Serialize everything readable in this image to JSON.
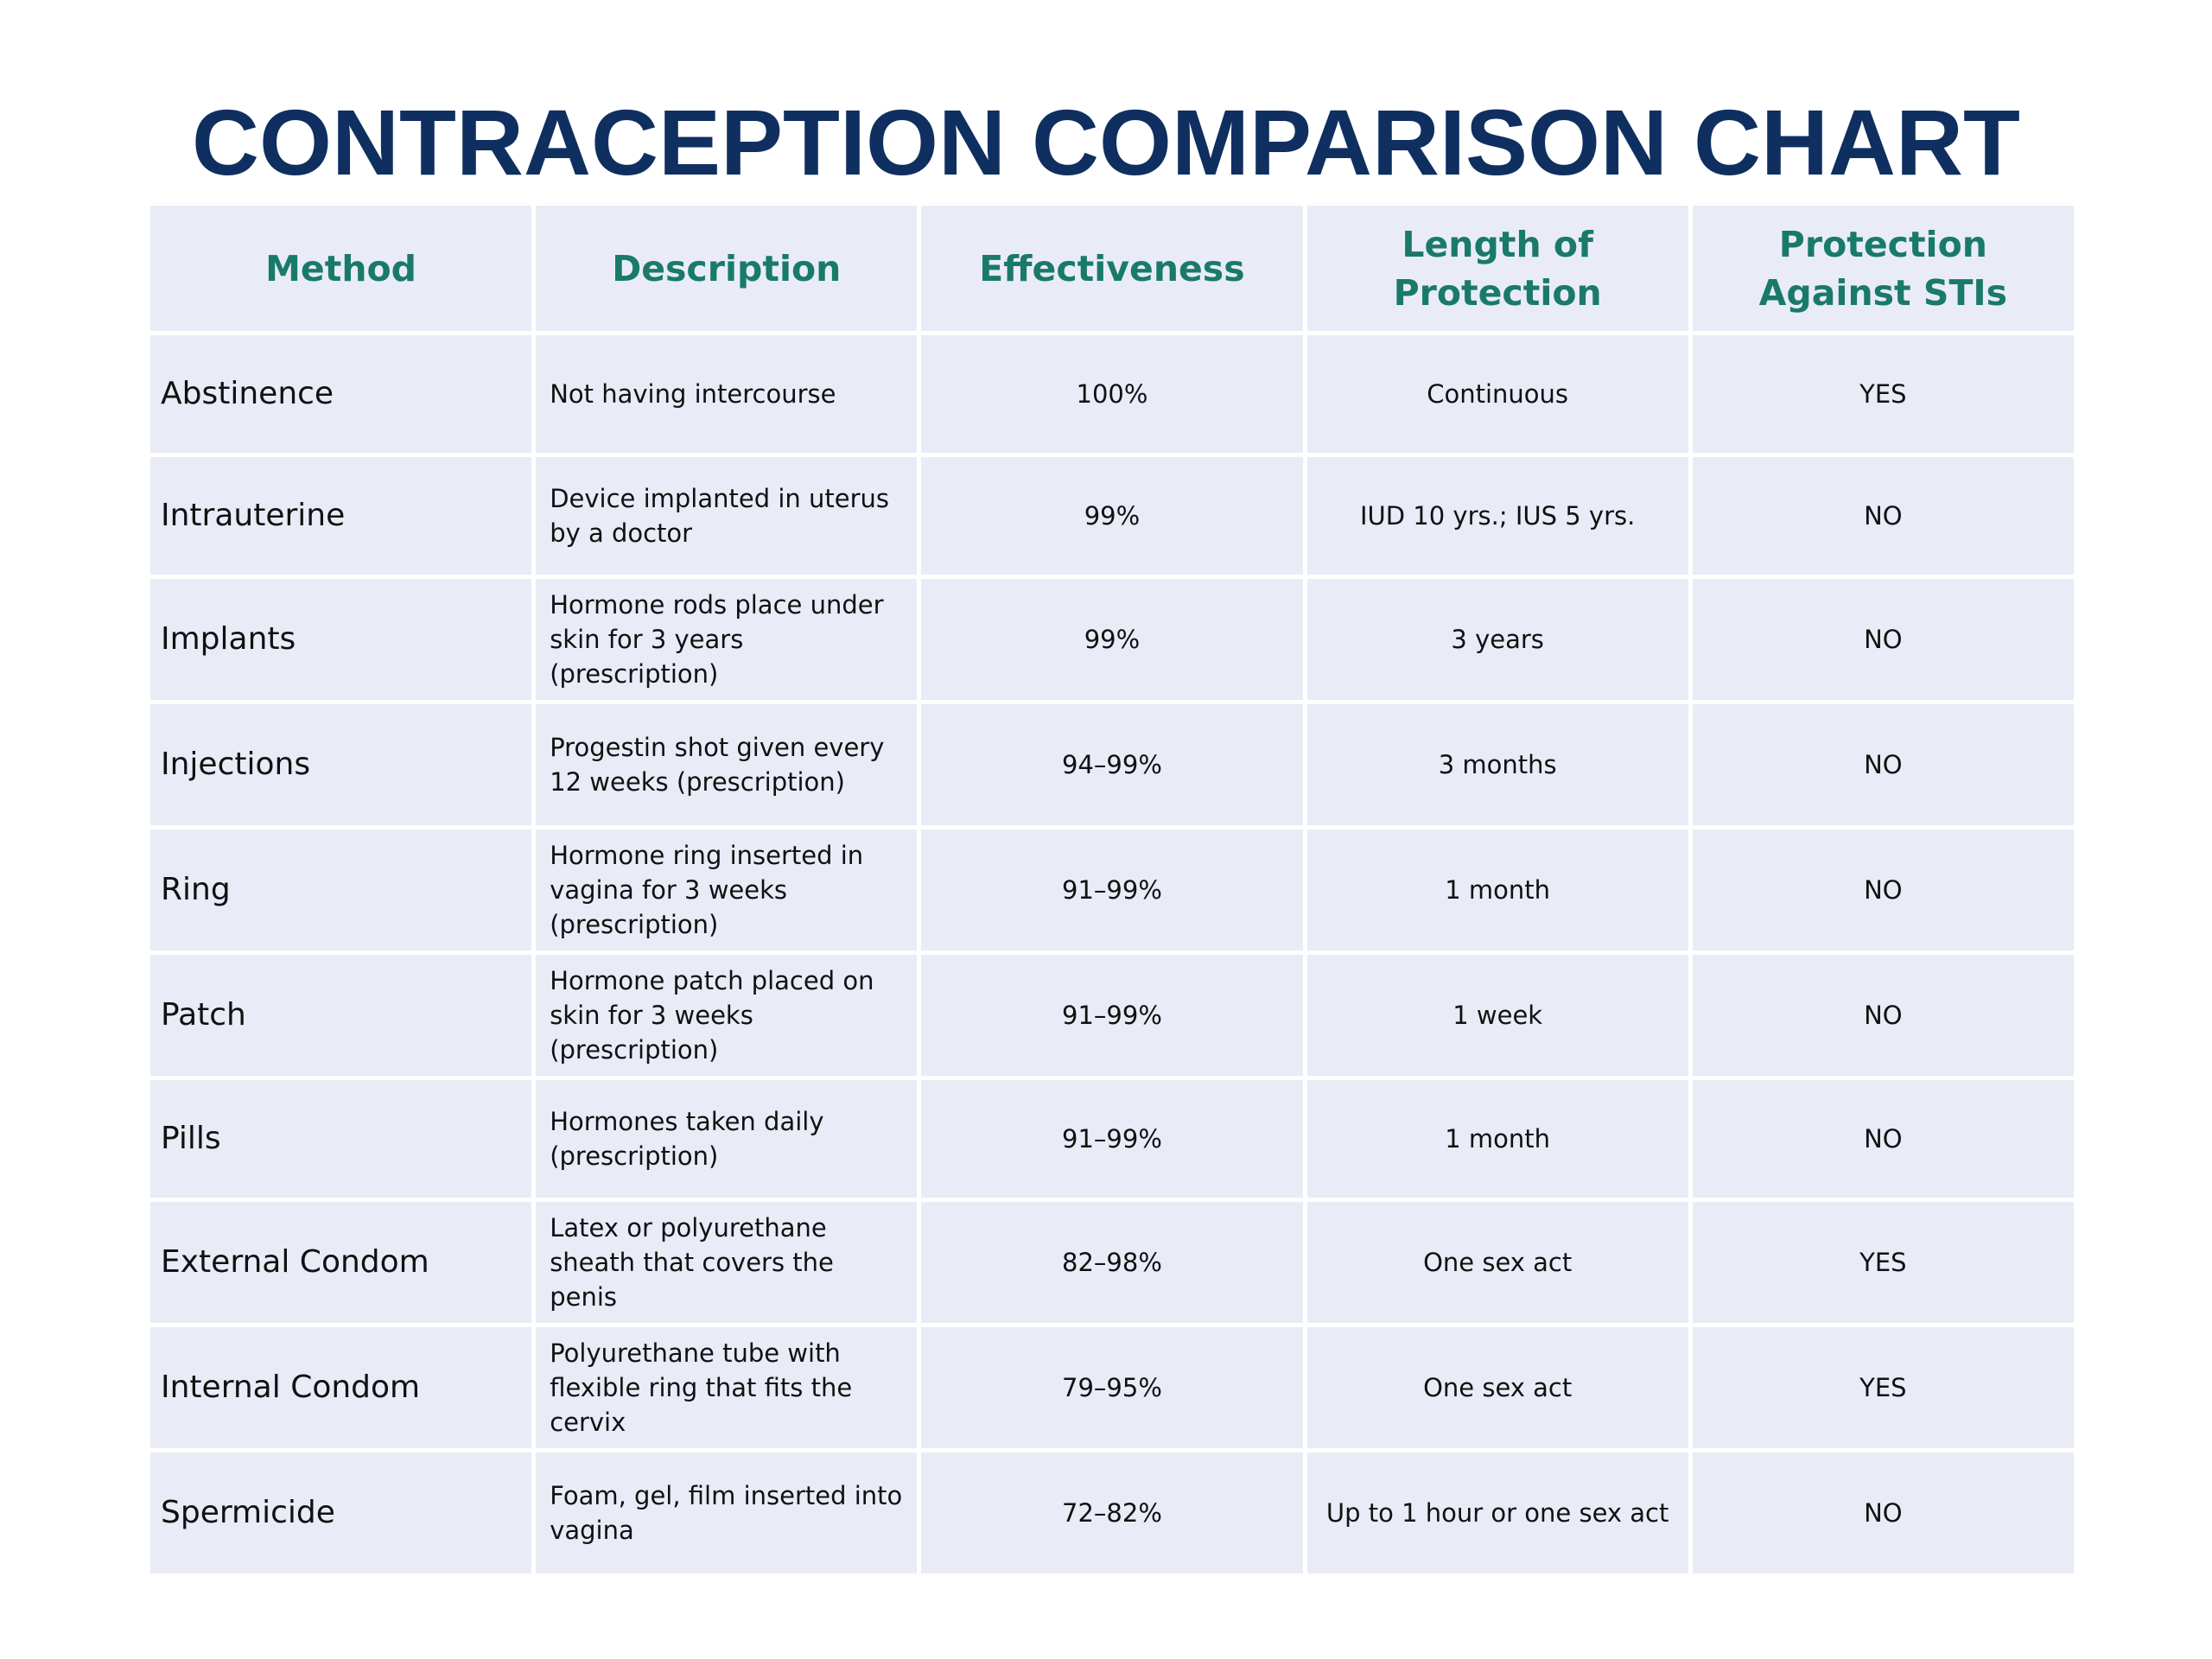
{
  "title": "CONTRACEPTION COMPARISON CHART",
  "columns": [
    "Method",
    "Description",
    "Effectiveness",
    "Length of Protection",
    "Protection Against STIs"
  ],
  "rows": [
    {
      "method": "Abstinence",
      "description": "Not having intercourse",
      "effectiveness": "100%",
      "length": "Continuous",
      "sti": "YES"
    },
    {
      "method": "Intrauterine",
      "description": "Device implanted in uterus by a doctor",
      "effectiveness": "99%",
      "length": "IUD 10 yrs.; IUS 5 yrs.",
      "sti": "NO"
    },
    {
      "method": "Implants",
      "description": "Hormone rods place under skin for 3 years (prescription)",
      "effectiveness": "99%",
      "length": "3 years",
      "sti": "NO"
    },
    {
      "method": "Injections",
      "description": "Progestin shot given every 12 weeks (prescription)",
      "effectiveness": "94–99%",
      "length": "3 months",
      "sti": "NO"
    },
    {
      "method": "Ring",
      "description": "Hormone ring inserted in vagina for 3 weeks (prescription)",
      "effectiveness": "91–99%",
      "length": "1 month",
      "sti": "NO"
    },
    {
      "method": "Patch",
      "description": "Hormone patch placed on skin for 3 weeks (prescription)",
      "effectiveness": "91–99%",
      "length": "1 week",
      "sti": "NO"
    },
    {
      "method": "Pills",
      "description": "Hormones taken daily (prescription)",
      "effectiveness": "91–99%",
      "length": "1 month",
      "sti": "NO"
    },
    {
      "method": "External Condom",
      "description": "Latex or polyurethane sheath that covers the penis",
      "effectiveness": "82–98%",
      "length": "One sex act",
      "sti": "YES"
    },
    {
      "method": "Internal Condom",
      "description": "Polyurethane tube with flexible ring that fits the cervix",
      "effectiveness": "79–95%",
      "length": "One sex act",
      "sti": "YES"
    },
    {
      "method": "Spermicide",
      "description": "Foam, gel, film inserted into vagina",
      "effectiveness": "72–82%",
      "length": "Up to 1 hour or one sex act",
      "sti": "NO"
    }
  ]
}
